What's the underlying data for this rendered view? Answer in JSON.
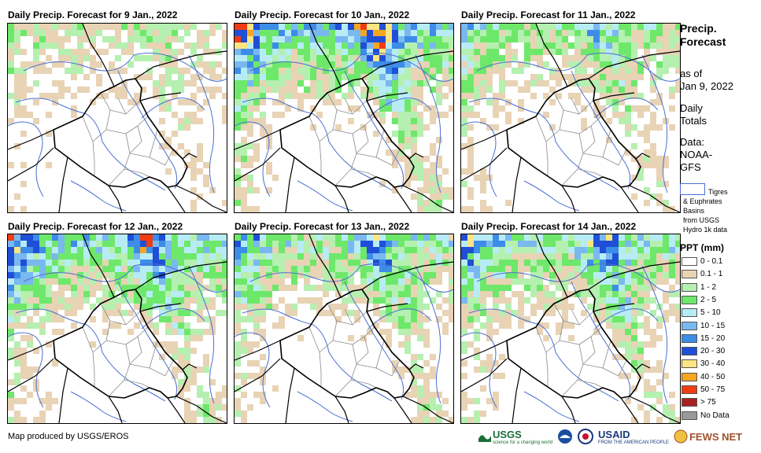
{
  "panels": [
    {
      "title": "Daily Precip. Forecast for 9 Jan., 2022",
      "seed": 11,
      "intensity": 0.6
    },
    {
      "title": "Daily Precip. Forecast for 10 Jan., 2022",
      "seed": 23,
      "intensity": 1.4
    },
    {
      "title": "Daily Precip. Forecast for 11 Jan., 2022",
      "seed": 37,
      "intensity": 0.9
    },
    {
      "title": "Daily Precip. Forecast for 12 Jan., 2022",
      "seed": 41,
      "intensity": 1.3
    },
    {
      "title": "Daily Precip. Forecast for 13 Jan., 2022",
      "seed": 53,
      "intensity": 1.1
    },
    {
      "title": "Daily Precip. Forecast for 14 Jan., 2022",
      "seed": 67,
      "intensity": 1.2
    }
  ],
  "legend": {
    "title_line1": "Precip.",
    "title_line2": "Forecast",
    "asof_line1": "as of",
    "asof_line2": "Jan 9, 2022",
    "daily_line1": "Daily",
    "daily_line2": "Totals",
    "data_line1": "Data:",
    "data_line2": "NOAA-",
    "data_line3": "GFS",
    "basin_line1": "Tigres",
    "basin_line2": "& Euphrates",
    "basin_line3": "Basins",
    "basin_line4": "from USGS",
    "basin_line5": "Hydro 1k data",
    "ppt_title": "PPT (mm)",
    "classes": [
      {
        "label": "0 - 0.1",
        "color": "#ffffff"
      },
      {
        "label": "0.1 - 1",
        "color": "#e8d3b5"
      },
      {
        "label": "1 - 2",
        "color": "#b5f0b0"
      },
      {
        "label": "2 - 5",
        "color": "#6ee86a"
      },
      {
        "label": "5 - 10",
        "color": "#b7ecf5"
      },
      {
        "label": "10 - 15",
        "color": "#7ab8f0"
      },
      {
        "label": "15 - 20",
        "color": "#3d8de8"
      },
      {
        "label": "20 - 30",
        "color": "#1f4fd6"
      },
      {
        "label": "30 - 40",
        "color": "#fce582"
      },
      {
        "label": "40 - 50",
        "color": "#f5a623"
      },
      {
        "label": "50 - 75",
        "color": "#f03c14"
      },
      {
        "label": "> 75",
        "color": "#a82222"
      },
      {
        "label": "No Data",
        "color": "#999999"
      }
    ]
  },
  "credit": "Map produced by USGS/EROS",
  "logos": {
    "usgs": "USGS",
    "usgs_tag": "science for a changing world",
    "usaid": "USAID",
    "usaid_tag": "FROM THE AMERICAN PEOPLE",
    "fewsnet": "FEWS NET"
  },
  "colors": {
    "border": "#000000",
    "rivers": "#4a6fd0",
    "provinces": "#8a8a8a"
  }
}
